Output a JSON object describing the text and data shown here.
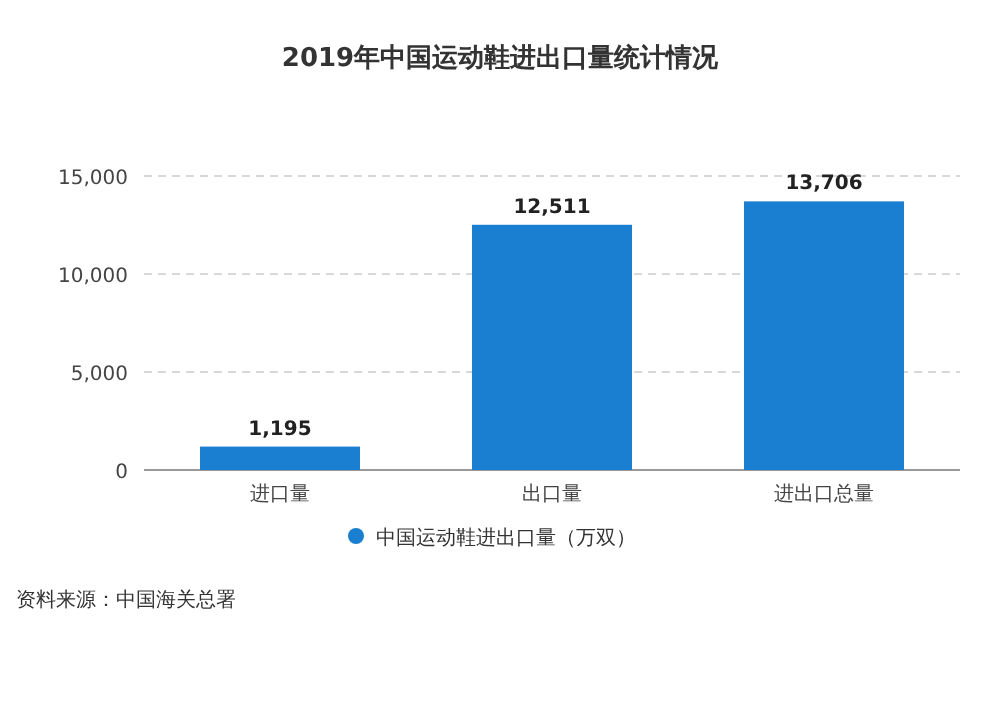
{
  "chart_data": {
    "type": "bar",
    "title": "2019年中国运动鞋进出口量统计情况",
    "categories": [
      "进口量",
      "出口量",
      "进出口总量"
    ],
    "series": [
      {
        "name": "中国运动鞋进出口量（万双）",
        "color": "#1a7fd1",
        "values": [
          1195,
          12511,
          13706
        ],
        "value_labels": [
          "1,195",
          "12,511",
          "13,706"
        ]
      }
    ],
    "ylim": [
      0,
      15000
    ],
    "yticks": [
      {
        "value": 0,
        "label": "0"
      },
      {
        "value": 5000,
        "label": "5,000"
      },
      {
        "value": 10000,
        "label": "10,000"
      },
      {
        "value": 15000,
        "label": "15,000"
      }
    ],
    "grid": "y",
    "legend": "bottom",
    "annotations": [
      "资料来源：中国海关总署"
    ]
  }
}
